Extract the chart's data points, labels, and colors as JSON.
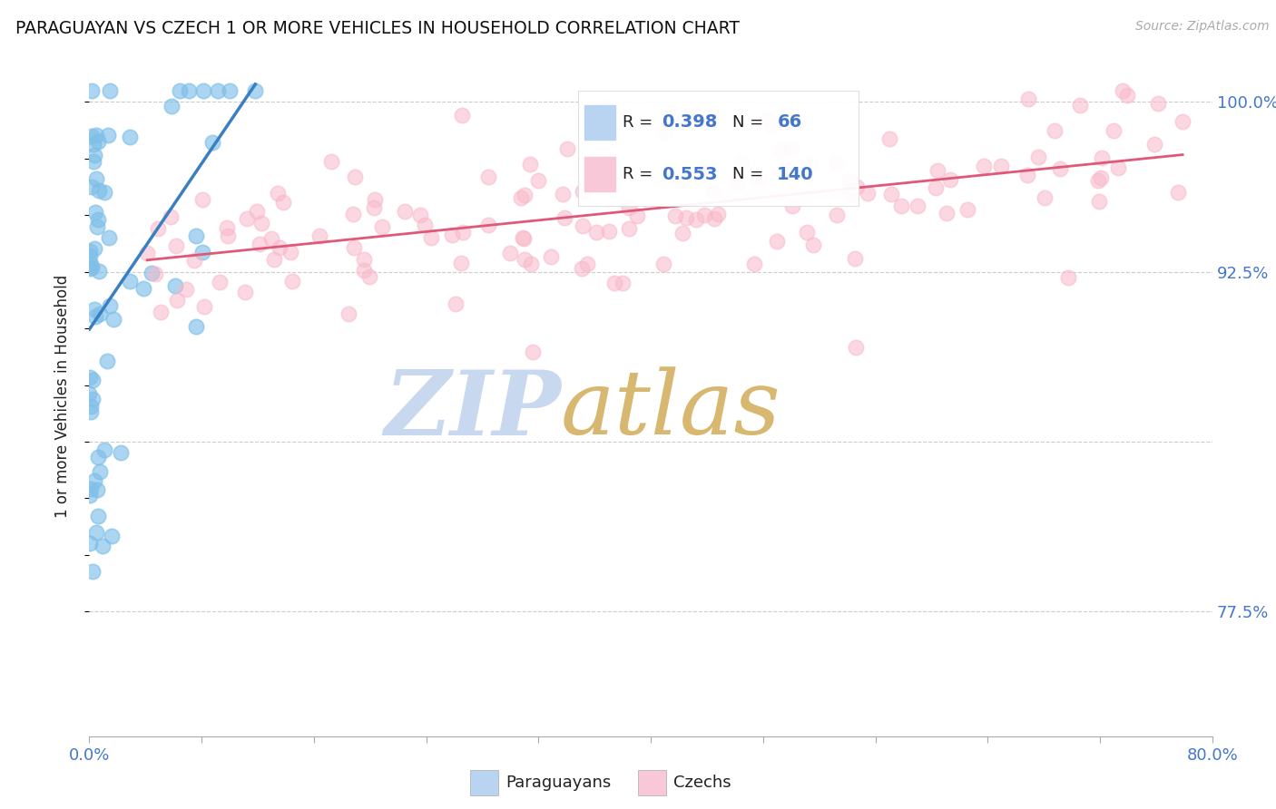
{
  "title": "PARAGUAYAN VS CZECH 1 OR MORE VEHICLES IN HOUSEHOLD CORRELATION CHART",
  "source_text": "Source: ZipAtlas.com",
  "ylabel": "1 or more Vehicles in Household",
  "xlim": [
    0.0,
    0.8
  ],
  "ylim": [
    0.72,
    1.02
  ],
  "xtick_positions": [
    0.0,
    0.08,
    0.16,
    0.24,
    0.32,
    0.4,
    0.48,
    0.56,
    0.64,
    0.72,
    0.8
  ],
  "xticklabels": [
    "0.0%",
    "",
    "",
    "",
    "",
    "",
    "",
    "",
    "",
    "",
    "80.0%"
  ],
  "ytick_vals": [
    0.775,
    0.8,
    0.825,
    0.85,
    0.875,
    0.9,
    0.925,
    0.95,
    0.975,
    1.0
  ],
  "yticklabels_right": [
    "77.5%",
    "",
    "",
    "",
    "",
    "",
    "92.5%",
    "",
    "",
    "100.0%"
  ],
  "grid_vals": [
    0.775,
    0.85,
    0.925,
    1.0
  ],
  "paraguayan_color": "#7fbfe8",
  "czech_color": "#f9b8ca",
  "paraguayan_edge_color": "#7fbfe8",
  "czech_edge_color": "#f9b8ca",
  "paraguayan_line_color": "#3a7fc1",
  "czech_line_color": "#e05878",
  "paraguayan_R": 0.398,
  "paraguayan_N": 66,
  "czech_R": 0.553,
  "czech_N": 140,
  "watermark": "ZIPatlas",
  "watermark_color_zip": "#c8d8ee",
  "watermark_color_atlas": "#d8b870",
  "legend_label_paraguayans": "Paraguayans",
  "legend_label_czechs": "Czechs",
  "legend_blue_fill": "#b8d4f0",
  "legend_pink_fill": "#f8c8d8",
  "tick_color": "#4477cc",
  "ylabel_color": "#222222",
  "title_color": "#111111"
}
